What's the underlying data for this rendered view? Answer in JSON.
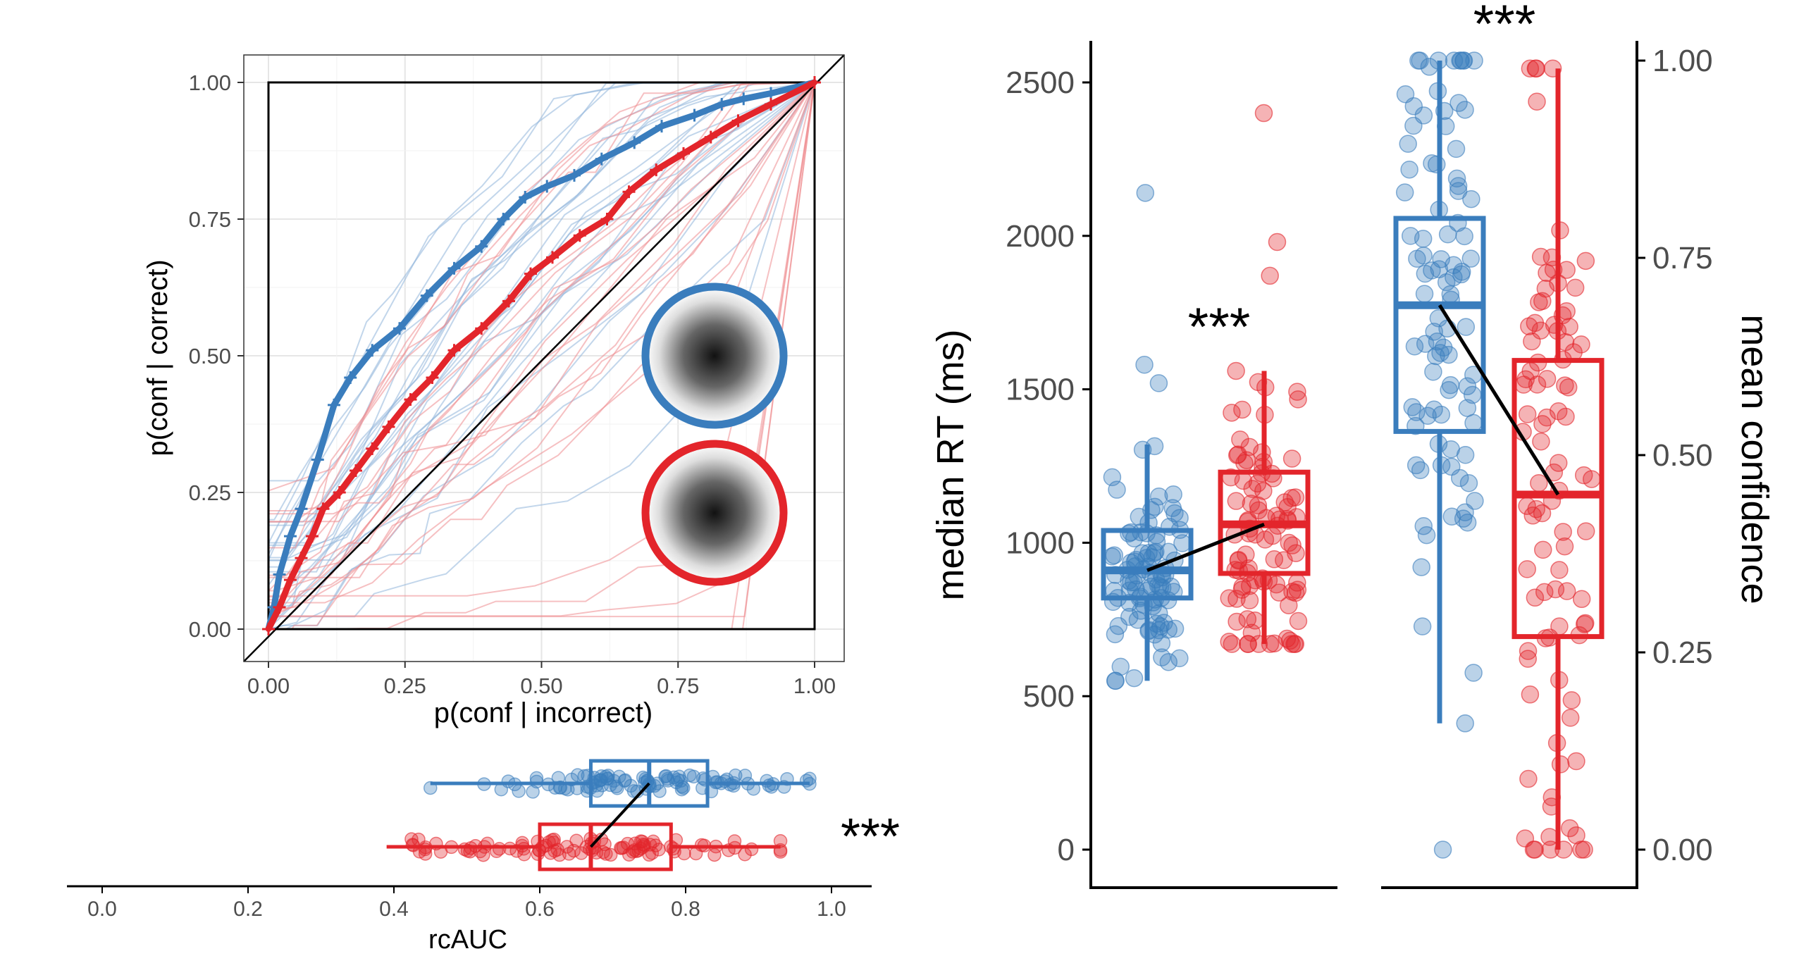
{
  "colors": {
    "blue": "#3a7dbd",
    "red": "#e3252b",
    "blue_light": "#8fb5db",
    "red_light": "#ee8c8f",
    "grid": "#e6e6e6",
    "axis": "#000000",
    "tick_text": "#4d4d4d"
  },
  "chart_data": [
    {
      "id": "roc",
      "type": "line",
      "title": "",
      "xlabel": "p(conf | incorrect)",
      "ylabel": "p(conf | correct)",
      "xlim": [
        -0.04,
        1.04
      ],
      "ylim": [
        -0.04,
        1.04
      ],
      "xticks": [
        "0.00",
        "0.25",
        "0.50",
        "0.75",
        "1.00"
      ],
      "yticks": [
        "0.00",
        "0.25",
        "0.50",
        "0.75",
        "1.00"
      ],
      "grid": true,
      "legend": "stimulus icons at lower-right inside panel",
      "legend_icons": [
        "blue-ring-noise-patch",
        "red-ring-noise-patch"
      ],
      "series": [
        {
          "name": "blue",
          "color": "blue",
          "x": [
            0,
            0.01,
            0.02,
            0.04,
            0.06,
            0.09,
            0.12,
            0.15,
            0.19,
            0.24,
            0.29,
            0.34,
            0.39,
            0.43,
            0.47,
            0.51,
            0.56,
            0.61,
            0.67,
            0.72,
            0.78,
            0.83,
            0.87,
            0.92,
            1.0
          ],
          "y": [
            0,
            0.04,
            0.1,
            0.17,
            0.22,
            0.31,
            0.41,
            0.46,
            0.51,
            0.55,
            0.61,
            0.66,
            0.7,
            0.75,
            0.79,
            0.81,
            0.83,
            0.86,
            0.89,
            0.92,
            0.94,
            0.96,
            0.97,
            0.98,
            1.0
          ]
        },
        {
          "name": "red",
          "color": "red",
          "x": [
            0,
            0.02,
            0.04,
            0.06,
            0.08,
            0.1,
            0.13,
            0.16,
            0.19,
            0.22,
            0.26,
            0.3,
            0.34,
            0.39,
            0.44,
            0.48,
            0.52,
            0.57,
            0.62,
            0.66,
            0.71,
            0.76,
            0.81,
            0.86,
            0.92,
            1.0
          ],
          "y": [
            0,
            0.04,
            0.09,
            0.13,
            0.17,
            0.22,
            0.25,
            0.29,
            0.33,
            0.37,
            0.42,
            0.46,
            0.51,
            0.55,
            0.6,
            0.65,
            0.68,
            0.72,
            0.75,
            0.8,
            0.84,
            0.87,
            0.9,
            0.93,
            0.96,
            1.0
          ]
        }
      ]
    },
    {
      "id": "rcauc",
      "type": "scatter",
      "xlabel": "rcAUC",
      "xlim": [
        -0.04,
        1.06
      ],
      "xticks": [
        "0.0",
        "0.2",
        "0.4",
        "0.6",
        "0.8",
        "1.0"
      ],
      "annotation": "***",
      "series": [
        {
          "name": "blue",
          "color": "blue",
          "box": {
            "q1": 0.67,
            "median": 0.75,
            "q3": 0.83,
            "whisker_low": 0.45,
            "whisker_high": 0.97
          }
        },
        {
          "name": "red",
          "color": "red",
          "box": {
            "q1": 0.6,
            "median": 0.67,
            "q3": 0.78,
            "whisker_low": 0.39,
            "whisker_high": 0.93
          }
        }
      ]
    },
    {
      "id": "rt-confidence",
      "type": "scatter",
      "ylabel_left": "median RT (ms)",
      "ylabel_right": "mean confidence",
      "ylim_left": [
        -120,
        2620
      ],
      "yticks_left": [
        "0",
        "500",
        "1000",
        "1500",
        "2000",
        "2500"
      ],
      "ylim_right": [
        -0.045,
        1.03
      ],
      "yticks_right": [
        "0.00",
        "0.25",
        "0.50",
        "0.75",
        "1.00"
      ],
      "annotations": [
        "***",
        "***"
      ],
      "series": [
        {
          "name": "blue RT",
          "color": "blue",
          "box": {
            "q1": 820,
            "median": 910,
            "q3": 1040,
            "whisker_low": 550,
            "whisker_high": 1320
          },
          "outliers": [
            2140,
            1580,
            1520
          ]
        },
        {
          "name": "red RT",
          "color": "red",
          "box": {
            "q1": 900,
            "median": 1060,
            "q3": 1230,
            "whisker_low": 670,
            "whisker_high": 1560
          },
          "outliers": [
            2400,
            1980,
            1870
          ]
        },
        {
          "name": "blue confidence",
          "color": "blue",
          "box": {
            "q1": 0.53,
            "median": 0.69,
            "q3": 0.8,
            "whisker_low": 0.16,
            "whisker_high": 1.0
          },
          "outliers": [
            0.0
          ]
        },
        {
          "name": "red confidence",
          "color": "red",
          "box": {
            "q1": 0.27,
            "median": 0.45,
            "q3": 0.62,
            "whisker_low": 0.0,
            "whisker_high": 0.99
          }
        }
      ]
    }
  ]
}
